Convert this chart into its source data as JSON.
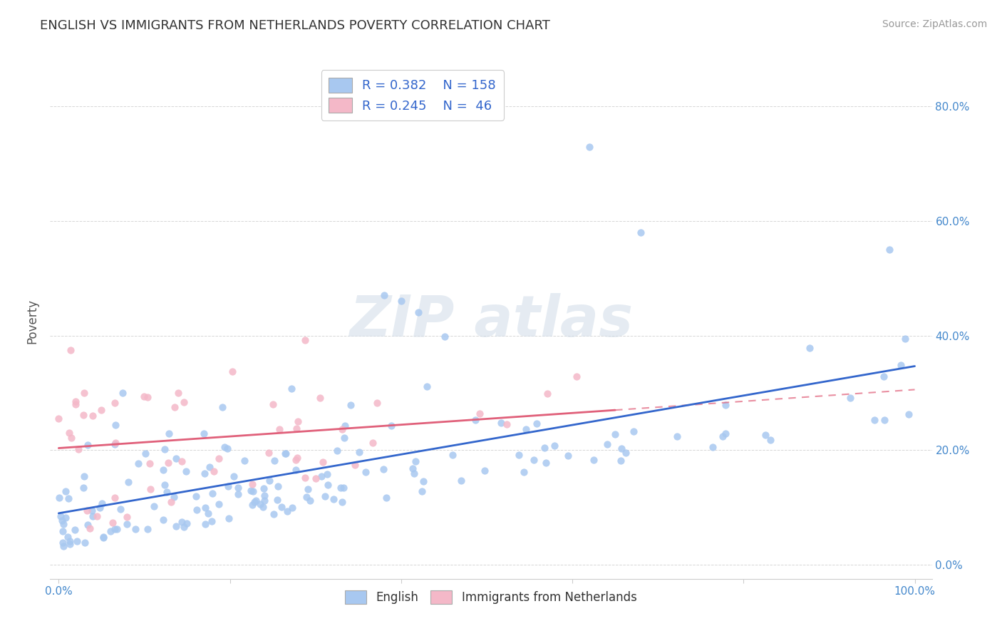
{
  "title": "ENGLISH VS IMMIGRANTS FROM NETHERLANDS POVERTY CORRELATION CHART",
  "source": "Source: ZipAtlas.com",
  "ylabel": "Poverty",
  "color_english": "#a8c8f0",
  "color_netherlands": "#f4b8c8",
  "color_trend_english": "#3366cc",
  "color_trend_netherlands": "#e0607a",
  "color_trend_neth_dashed": "#e8a0b0",
  "legend_r1": "0.382",
  "legend_n1": "158",
  "legend_r2": "0.245",
  "legend_n2": " 46",
  "legend_label1": "English",
  "legend_label2": "Immigrants from Netherlands",
  "watermark_text": "ZIPatlas",
  "grid_color": "#cccccc",
  "title_fontsize": 13,
  "axis_tick_color": "#4488cc"
}
